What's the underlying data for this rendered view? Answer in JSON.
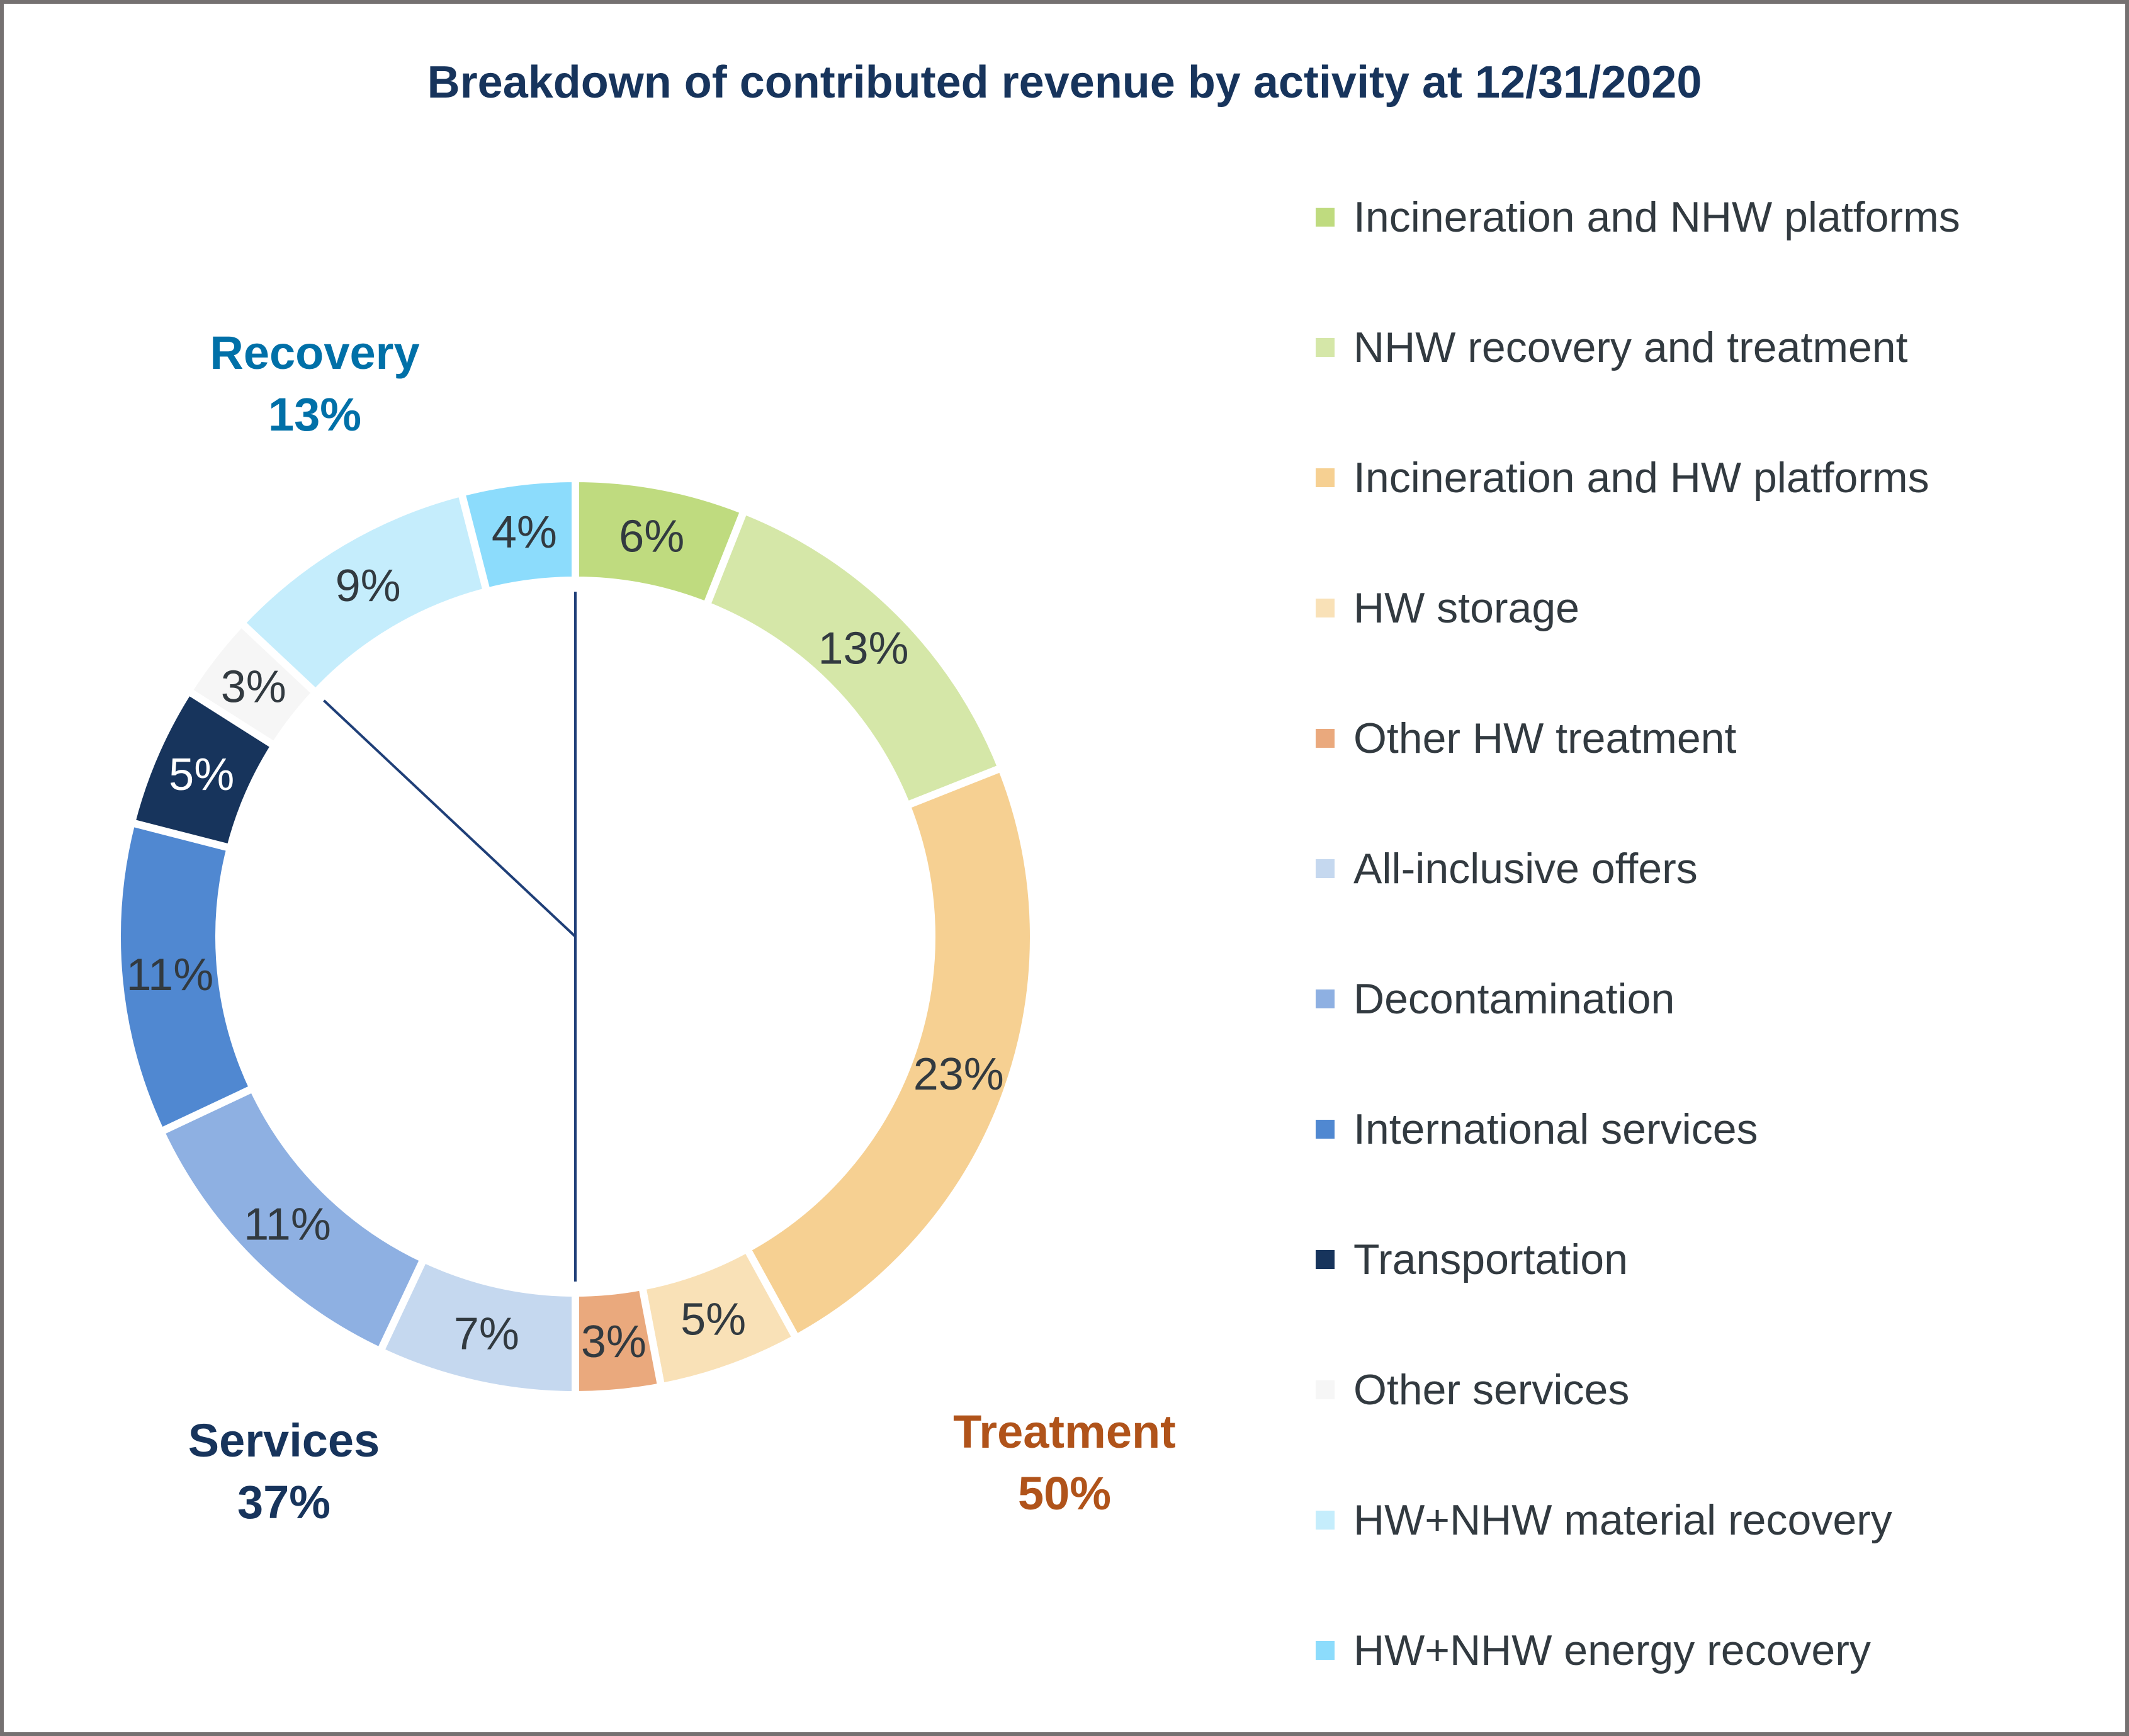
{
  "chart_data": {
    "type": "pie",
    "variant": "donut",
    "title": "Breakdown of contributed revenue by activity at 12/31/2020",
    "unit": "%",
    "legend_position": "right",
    "slices": [
      {
        "label": "Incineration and NHW platforms",
        "value": 6,
        "display": "6%",
        "color": "#bfdb7f",
        "text_color": "#323a40",
        "group": "Treatment"
      },
      {
        "label": "NHW recovery and treatment",
        "value": 13,
        "display": "13%",
        "color": "#d5e7a8",
        "text_color": "#323a40",
        "group": "Treatment"
      },
      {
        "label": "Incineration and HW platforms",
        "value": 23,
        "display": "23%",
        "color": "#f6d092",
        "text_color": "#323a40",
        "group": "Treatment"
      },
      {
        "label": "HW storage",
        "value": 5,
        "display": "5%",
        "color": "#f9e1b7",
        "text_color": "#323a40",
        "group": "Treatment"
      },
      {
        "label": "Other HW treatment",
        "value": 3,
        "display": "3%",
        "color": "#eaa97d",
        "text_color": "#323a40",
        "group": "Treatment"
      },
      {
        "label": "All-inclusive offers",
        "value": 7,
        "display": "7%",
        "color": "#c5d8ef",
        "text_color": "#323a40",
        "group": "Services"
      },
      {
        "label": "Decontamination",
        "value": 11,
        "display": "11%",
        "color": "#8eb0e2",
        "text_color": "#323a40",
        "group": "Services"
      },
      {
        "label": "International services",
        "value": 11,
        "display": "11%",
        "color": "#5088d1",
        "text_color": "#323a40",
        "group": "Services"
      },
      {
        "label": "Transportation",
        "value": 5,
        "display": "5%",
        "color": "#17345c",
        "text_color": "#ffffff",
        "group": "Services"
      },
      {
        "label": "Other services",
        "value": 3,
        "display": "3%",
        "color": "#f6f6f6",
        "text_color": "#323a40",
        "group": "Services"
      },
      {
        "label": "HW+NHW material recovery",
        "value": 9,
        "display": "9%",
        "color": "#c5edfc",
        "text_color": "#323a40",
        "group": "Recovery"
      },
      {
        "label": "HW+NHW energy recovery",
        "value": 4,
        "display": "4%",
        "color": "#8cdcfc",
        "text_color": "#323a40",
        "group": "Recovery"
      }
    ],
    "groups": [
      {
        "name": "Recovery",
        "value": 13,
        "display": "13%",
        "color": "#0070a8"
      },
      {
        "name": "Services",
        "value": 37,
        "display": "37%",
        "color": "#17345c"
      },
      {
        "name": "Treatment",
        "value": 50,
        "display": "50%",
        "color": "#b0531a"
      }
    ],
    "group_divider_color": "#1f3f78"
  }
}
